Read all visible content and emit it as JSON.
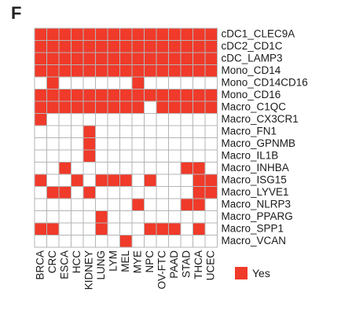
{
  "panel_letter": "F",
  "chart_data": {
    "type": "heatmap",
    "rows": [
      "cDC1_CLEC9A",
      "cDC2_CD1C",
      "cDC_LAMP3",
      "Mono_CD14",
      "Mono_CD14CD16",
      "Mono_CD16",
      "Macro_C1QC",
      "Macro_CX3CR1",
      "Macro_FN1",
      "Macro_GPNMB",
      "Macro_IL1B",
      "Macro_INHBA",
      "Macro_ISG15",
      "Macro_LYVE1",
      "Macro_NLRP3",
      "Macro_PPARG",
      "Macro_SPP1",
      "Macro_VCAN"
    ],
    "columns": [
      "BRCA",
      "CRC",
      "ESCA",
      "HCC",
      "KIDNEY",
      "LUNG",
      "LYM",
      "MEL",
      "MYE",
      "NPC",
      "OV-FTC",
      "PAAD",
      "STAD",
      "THCA",
      "UCEC"
    ],
    "values": [
      [
        1,
        1,
        1,
        1,
        1,
        1,
        1,
        1,
        1,
        1,
        1,
        1,
        1,
        1,
        1
      ],
      [
        1,
        1,
        1,
        1,
        1,
        1,
        1,
        1,
        1,
        1,
        1,
        1,
        1,
        1,
        1
      ],
      [
        1,
        1,
        1,
        1,
        1,
        1,
        1,
        1,
        1,
        1,
        1,
        1,
        1,
        1,
        1
      ],
      [
        1,
        1,
        1,
        1,
        1,
        1,
        1,
        1,
        1,
        1,
        1,
        1,
        1,
        1,
        1
      ],
      [
        0,
        1,
        0,
        0,
        0,
        0,
        0,
        0,
        1,
        0,
        0,
        0,
        0,
        0,
        0
      ],
      [
        1,
        1,
        1,
        1,
        1,
        1,
        1,
        1,
        1,
        1,
        1,
        1,
        1,
        1,
        1
      ],
      [
        1,
        1,
        1,
        1,
        1,
        1,
        1,
        1,
        1,
        0,
        1,
        1,
        1,
        1,
        1
      ],
      [
        1,
        0,
        0,
        0,
        0,
        0,
        0,
        0,
        0,
        0,
        0,
        0,
        0,
        0,
        0
      ],
      [
        0,
        0,
        0,
        0,
        1,
        0,
        0,
        0,
        0,
        0,
        0,
        0,
        0,
        0,
        0
      ],
      [
        0,
        0,
        0,
        0,
        1,
        0,
        0,
        0,
        0,
        0,
        0,
        0,
        0,
        0,
        0
      ],
      [
        0,
        0,
        0,
        0,
        1,
        0,
        0,
        0,
        0,
        0,
        0,
        0,
        0,
        0,
        0
      ],
      [
        0,
        0,
        1,
        0,
        0,
        0,
        0,
        0,
        0,
        0,
        0,
        0,
        1,
        1,
        0
      ],
      [
        1,
        0,
        0,
        1,
        0,
        1,
        1,
        1,
        0,
        1,
        0,
        0,
        0,
        1,
        1
      ],
      [
        0,
        1,
        1,
        0,
        1,
        0,
        0,
        0,
        0,
        0,
        0,
        0,
        0,
        1,
        1
      ],
      [
        0,
        0,
        0,
        0,
        0,
        0,
        0,
        0,
        1,
        0,
        0,
        0,
        1,
        1,
        0
      ],
      [
        0,
        0,
        0,
        0,
        0,
        1,
        0,
        0,
        0,
        0,
        0,
        0,
        0,
        0,
        0
      ],
      [
        1,
        1,
        0,
        0,
        0,
        1,
        0,
        0,
        0,
        1,
        1,
        1,
        0,
        1,
        0
      ],
      [
        0,
        0,
        0,
        0,
        0,
        0,
        0,
        1,
        0,
        0,
        0,
        0,
        0,
        0,
        0
      ]
    ],
    "legend": {
      "label": "Yes",
      "position": "bottom-right"
    },
    "colors": {
      "yes": "#f03a2a",
      "no": "#ffffff",
      "grid": "#b5b5b5"
    }
  }
}
